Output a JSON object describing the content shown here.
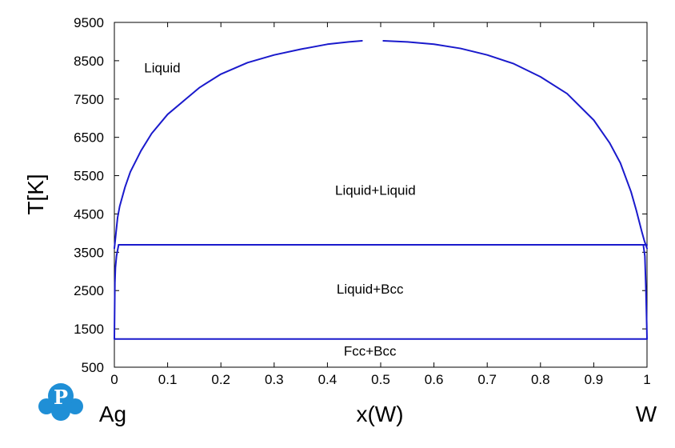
{
  "colors": {
    "curve": "#1a1acc",
    "logo": "#1f8fd6",
    "axis": "#000000",
    "background": "#ffffff"
  },
  "logo": {
    "icon": "pandat-logo-icon",
    "text": "P"
  },
  "chart_data": {
    "type": "line",
    "title": "",
    "xlabel": "x(W)",
    "ylabel": "T[K]",
    "xlim": [
      0,
      1
    ],
    "ylim": [
      500,
      9500
    ],
    "x_ticks": [
      0,
      0.1,
      0.2,
      0.3,
      0.4,
      0.5,
      0.6,
      0.7,
      0.8,
      0.9,
      1
    ],
    "x_tick_labels": [
      "0",
      "0.1",
      "0.2",
      "0.3",
      "0.4",
      "0.5",
      "0.6",
      "0.7",
      "0.8",
      "0.9",
      "1"
    ],
    "y_ticks": [
      500,
      1500,
      2500,
      3500,
      4500,
      5500,
      6500,
      7500,
      8500,
      9500
    ],
    "y_tick_labels": [
      "500",
      "1500",
      "2500",
      "3500",
      "4500",
      "5500",
      "6500",
      "7500",
      "8500",
      "9500"
    ],
    "element_left": "Ag",
    "element_right": "W",
    "series": [
      {
        "id": "miscibility-gap-left",
        "x": [
          0.0,
          0.003,
          0.006,
          0.01,
          0.02,
          0.03,
          0.05,
          0.07,
          0.1,
          0.13,
          0.16,
          0.2,
          0.25,
          0.3,
          0.35,
          0.4,
          0.44,
          0.465
        ],
        "y": [
          3600,
          4000,
          4400,
          4700,
          5200,
          5600,
          6150,
          6600,
          7100,
          7450,
          7800,
          8150,
          8450,
          8650,
          8800,
          8930,
          8990,
          9020
        ]
      },
      {
        "id": "miscibility-gap-right",
        "x": [
          0.505,
          0.55,
          0.6,
          0.65,
          0.7,
          0.75,
          0.8,
          0.85,
          0.9,
          0.93,
          0.95,
          0.97,
          0.98,
          0.99,
          0.995,
          1.0
        ],
        "y": [
          9020,
          8990,
          8930,
          8820,
          8650,
          8420,
          8080,
          7640,
          6950,
          6350,
          5830,
          5080,
          4590,
          4050,
          3800,
          3600
        ]
      },
      {
        "id": "liquidus-left",
        "x": [
          0.0,
          0.001,
          0.002,
          0.004,
          0.006,
          0.008
        ],
        "y": [
          1235,
          2700,
          3100,
          3400,
          3550,
          3695
        ]
      },
      {
        "id": "liquidus-right",
        "x": [
          0.993,
          0.996,
          0.998,
          0.9995,
          1.0
        ],
        "y": [
          3695,
          3400,
          2500,
          1600,
          1235
        ]
      },
      {
        "id": "monotectic-line",
        "x": [
          0.008,
          1.0
        ],
        "y": [
          3695,
          3695
        ]
      },
      {
        "id": "eutectic-line",
        "x": [
          0.0,
          1.0
        ],
        "y": [
          1235,
          1235
        ]
      }
    ],
    "annotations": [
      {
        "text": "Liquid",
        "x": 0.09,
        "y": 8200
      },
      {
        "text": "Liquid+Liquid",
        "x": 0.49,
        "y": 5000
      },
      {
        "text": "Liquid+Bcc",
        "x": 0.48,
        "y": 2420
      },
      {
        "text": "Fcc+Bcc",
        "x": 0.48,
        "y": 800
      }
    ],
    "grid": false,
    "legend": "none"
  }
}
